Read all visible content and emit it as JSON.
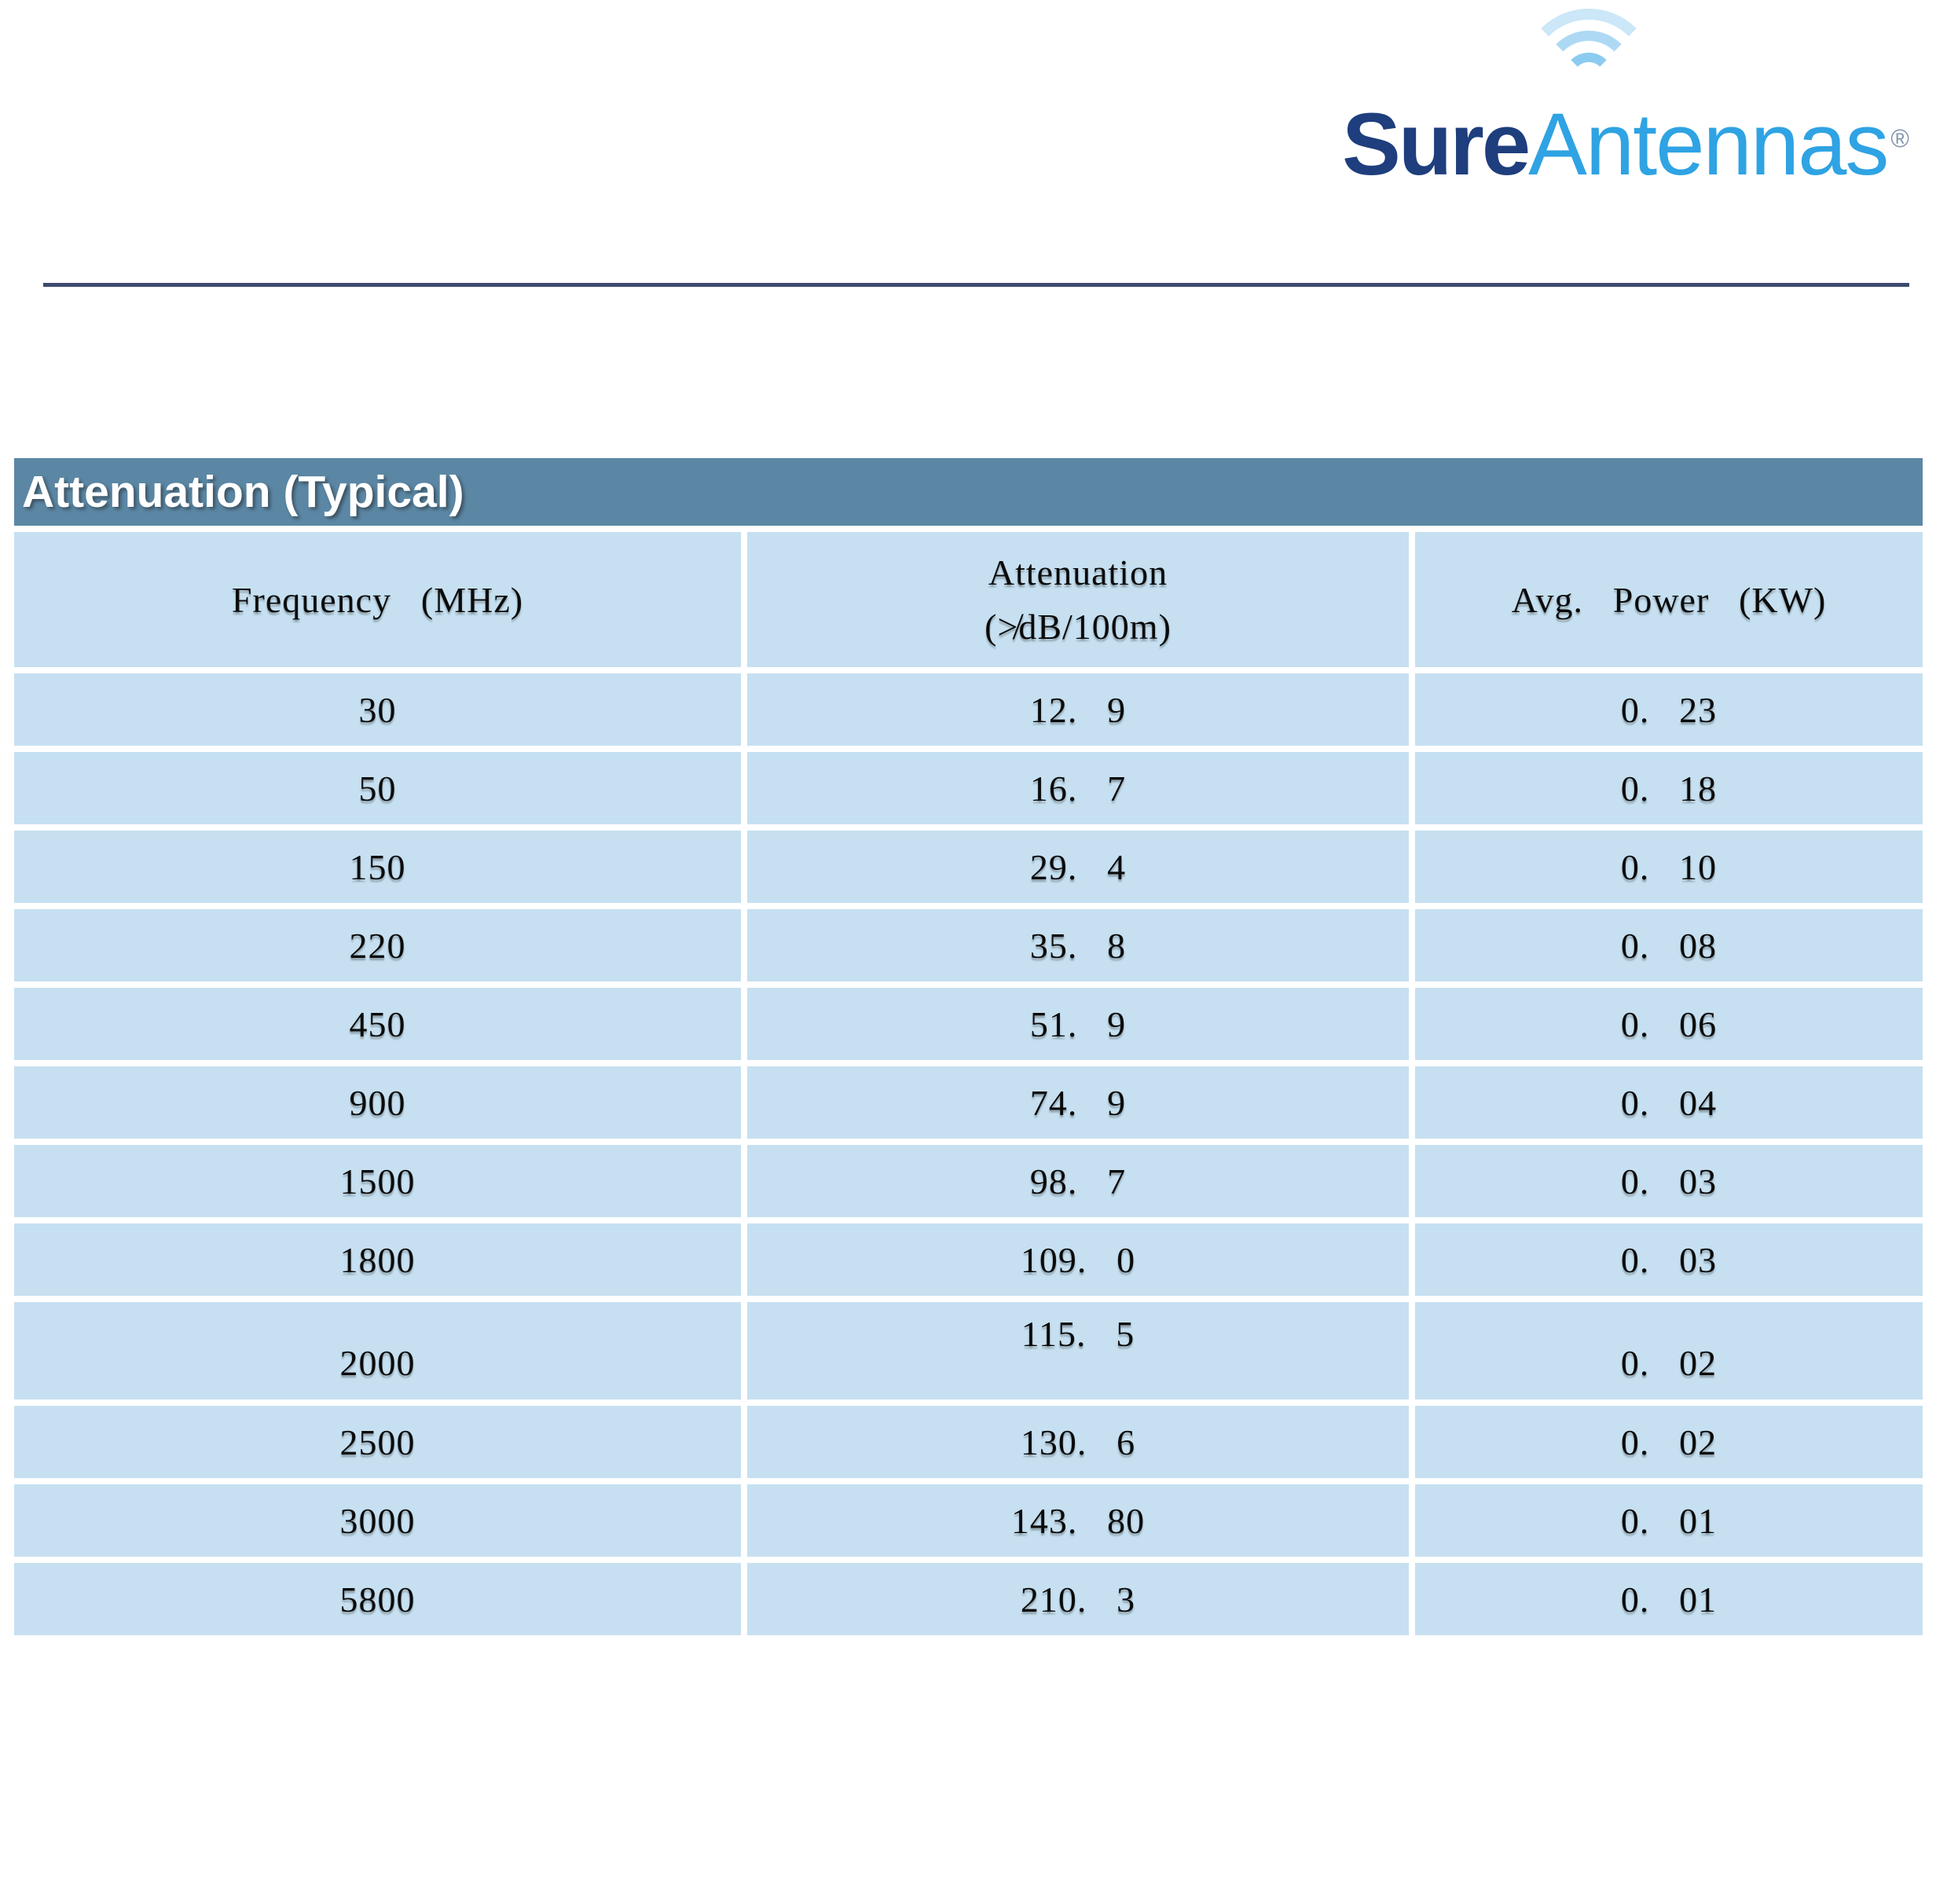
{
  "logo": {
    "brand_part1": "Sure",
    "brand_part2": "Antennas",
    "registered_mark": "®",
    "waves_icon": "radio-waves-icon",
    "color_part1": "#1e3e7d",
    "color_part2": "#2fa3e3"
  },
  "divider": {
    "color": "#3d4b6e"
  },
  "table": {
    "title": "Attenuation (Typical)",
    "title_band_color": "#5b87a5",
    "cell_color": "#c6e0f1",
    "columns": [
      {
        "label": "Frequency (MHz)"
      },
      {
        "line1": "Attenuation",
        "line2": "(≯dB/100m)"
      },
      {
        "label": "Avg. Power (KW)"
      }
    ],
    "rows": [
      {
        "frequency": "30",
        "attenuation": "12. 9",
        "avg_power": "0. 23"
      },
      {
        "frequency": "50",
        "attenuation": "16. 7",
        "avg_power": "0. 18"
      },
      {
        "frequency": "150",
        "attenuation": "29. 4",
        "avg_power": "0. 10"
      },
      {
        "frequency": "220",
        "attenuation": "35. 8",
        "avg_power": "0. 08"
      },
      {
        "frequency": "450",
        "attenuation": "51. 9",
        "avg_power": "0. 06"
      },
      {
        "frequency": "900",
        "attenuation": "74. 9",
        "avg_power": "0. 04"
      },
      {
        "frequency": "1500",
        "attenuation": "98. 7",
        "avg_power": "0. 03"
      },
      {
        "frequency": "1800",
        "attenuation": "109. 0",
        "avg_power": "0. 03"
      },
      {
        "frequency": "2000",
        "attenuation": "115. 5",
        "avg_power": "0. 02"
      },
      {
        "frequency": "2500",
        "attenuation": "130. 6",
        "avg_power": "0. 02"
      },
      {
        "frequency": "3000",
        "attenuation": "143. 80",
        "avg_power": "0. 01"
      },
      {
        "frequency": "5800",
        "attenuation": "210. 3",
        "avg_power": "0. 01"
      }
    ]
  }
}
